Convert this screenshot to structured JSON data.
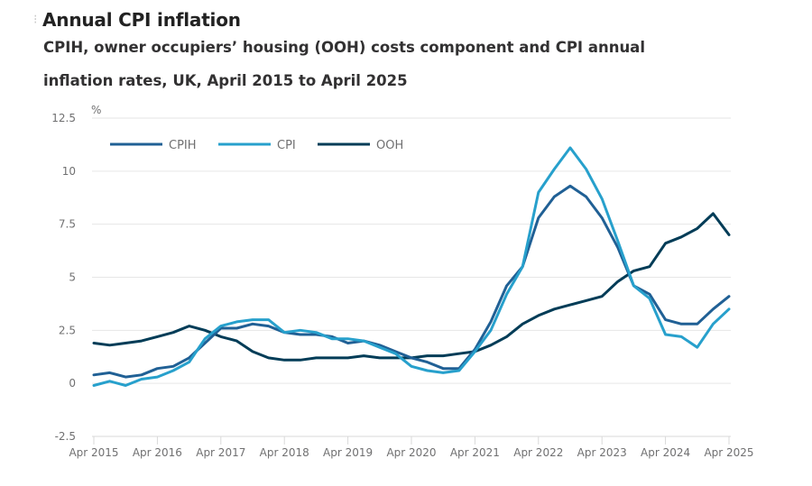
{
  "header": {
    "title": "Annual CPI inflation",
    "subtitle_line1": "CPIH, owner occupiers’ housing (OOH) costs component and CPI annual",
    "subtitle_line2": "inflation rates, UK, April 2015 to April 2025"
  },
  "colors": {
    "CPIH": "#206095",
    "CPI": "#27a0cc",
    "OOH": "#003c57",
    "grid": "#e6e6e6",
    "axis": "#d9d9d9"
  },
  "chart_data": {
    "type": "line",
    "title": "CPIH, owner occupiers’ housing (OOH) costs component and CPI annual inflation rates, UK, April 2015 to April 2025",
    "xlabel": "",
    "ylabel": "%",
    "ylim": [
      -2.5,
      12.5
    ],
    "yticks": [
      -2.5,
      0,
      2.5,
      5,
      7.5,
      10,
      12.5
    ],
    "ytick_labels": [
      "-2.5",
      "0",
      "2.5",
      "5",
      "7.5",
      "10",
      "12.5"
    ],
    "xrange": [
      "Apr 2015",
      "Apr 2025"
    ],
    "xtick_labels": [
      "Apr 2015",
      "Apr 2016",
      "Apr 2017",
      "Apr 2018",
      "Apr 2019",
      "Apr 2020",
      "Apr 2021",
      "Apr 2022",
      "Apr 2023",
      "Apr 2024",
      "Apr 2025"
    ],
    "grid": true,
    "legend_position": "top-left",
    "x_points_months_since_apr2015": [
      0,
      3,
      6,
      9,
      12,
      15,
      18,
      21,
      24,
      27,
      30,
      33,
      36,
      39,
      42,
      45,
      48,
      51,
      54,
      57,
      60,
      63,
      66,
      69,
      72,
      75,
      78,
      81,
      84,
      87,
      90,
      93,
      96,
      99,
      102,
      105,
      108,
      111,
      114,
      117,
      120
    ],
    "series": [
      {
        "name": "CPIH",
        "values": [
          0.4,
          0.5,
          0.3,
          0.4,
          0.7,
          0.8,
          1.2,
          1.9,
          2.6,
          2.6,
          2.8,
          2.7,
          2.4,
          2.3,
          2.3,
          2.2,
          1.9,
          2.0,
          1.8,
          1.5,
          1.2,
          1.0,
          0.7,
          0.7,
          1.6,
          2.9,
          4.6,
          5.5,
          7.8,
          8.8,
          9.3,
          8.8,
          7.8,
          6.4,
          4.6,
          4.2,
          3.0,
          2.8,
          2.8,
          3.5,
          4.1
        ]
      },
      {
        "name": "CPI",
        "values": [
          -0.1,
          0.1,
          -0.1,
          0.2,
          0.3,
          0.6,
          1.0,
          2.1,
          2.7,
          2.9,
          3.0,
          3.0,
          2.4,
          2.5,
          2.4,
          2.1,
          2.1,
          2.0,
          1.7,
          1.4,
          0.8,
          0.6,
          0.5,
          0.6,
          1.5,
          2.5,
          4.2,
          5.5,
          9.0,
          10.1,
          11.1,
          10.1,
          8.7,
          6.7,
          4.6,
          4.0,
          2.3,
          2.2,
          1.7,
          2.8,
          3.5
        ]
      },
      {
        "name": "OOH",
        "values": [
          1.9,
          1.8,
          1.9,
          2.0,
          2.2,
          2.4,
          2.7,
          2.5,
          2.2,
          2.0,
          1.5,
          1.2,
          1.1,
          1.1,
          1.2,
          1.2,
          1.2,
          1.3,
          1.2,
          1.2,
          1.2,
          1.3,
          1.3,
          1.4,
          1.5,
          1.8,
          2.2,
          2.8,
          3.2,
          3.5,
          3.7,
          3.9,
          4.1,
          4.8,
          5.3,
          5.5,
          6.6,
          6.9,
          7.3,
          8.0,
          7.0
        ]
      }
    ]
  }
}
